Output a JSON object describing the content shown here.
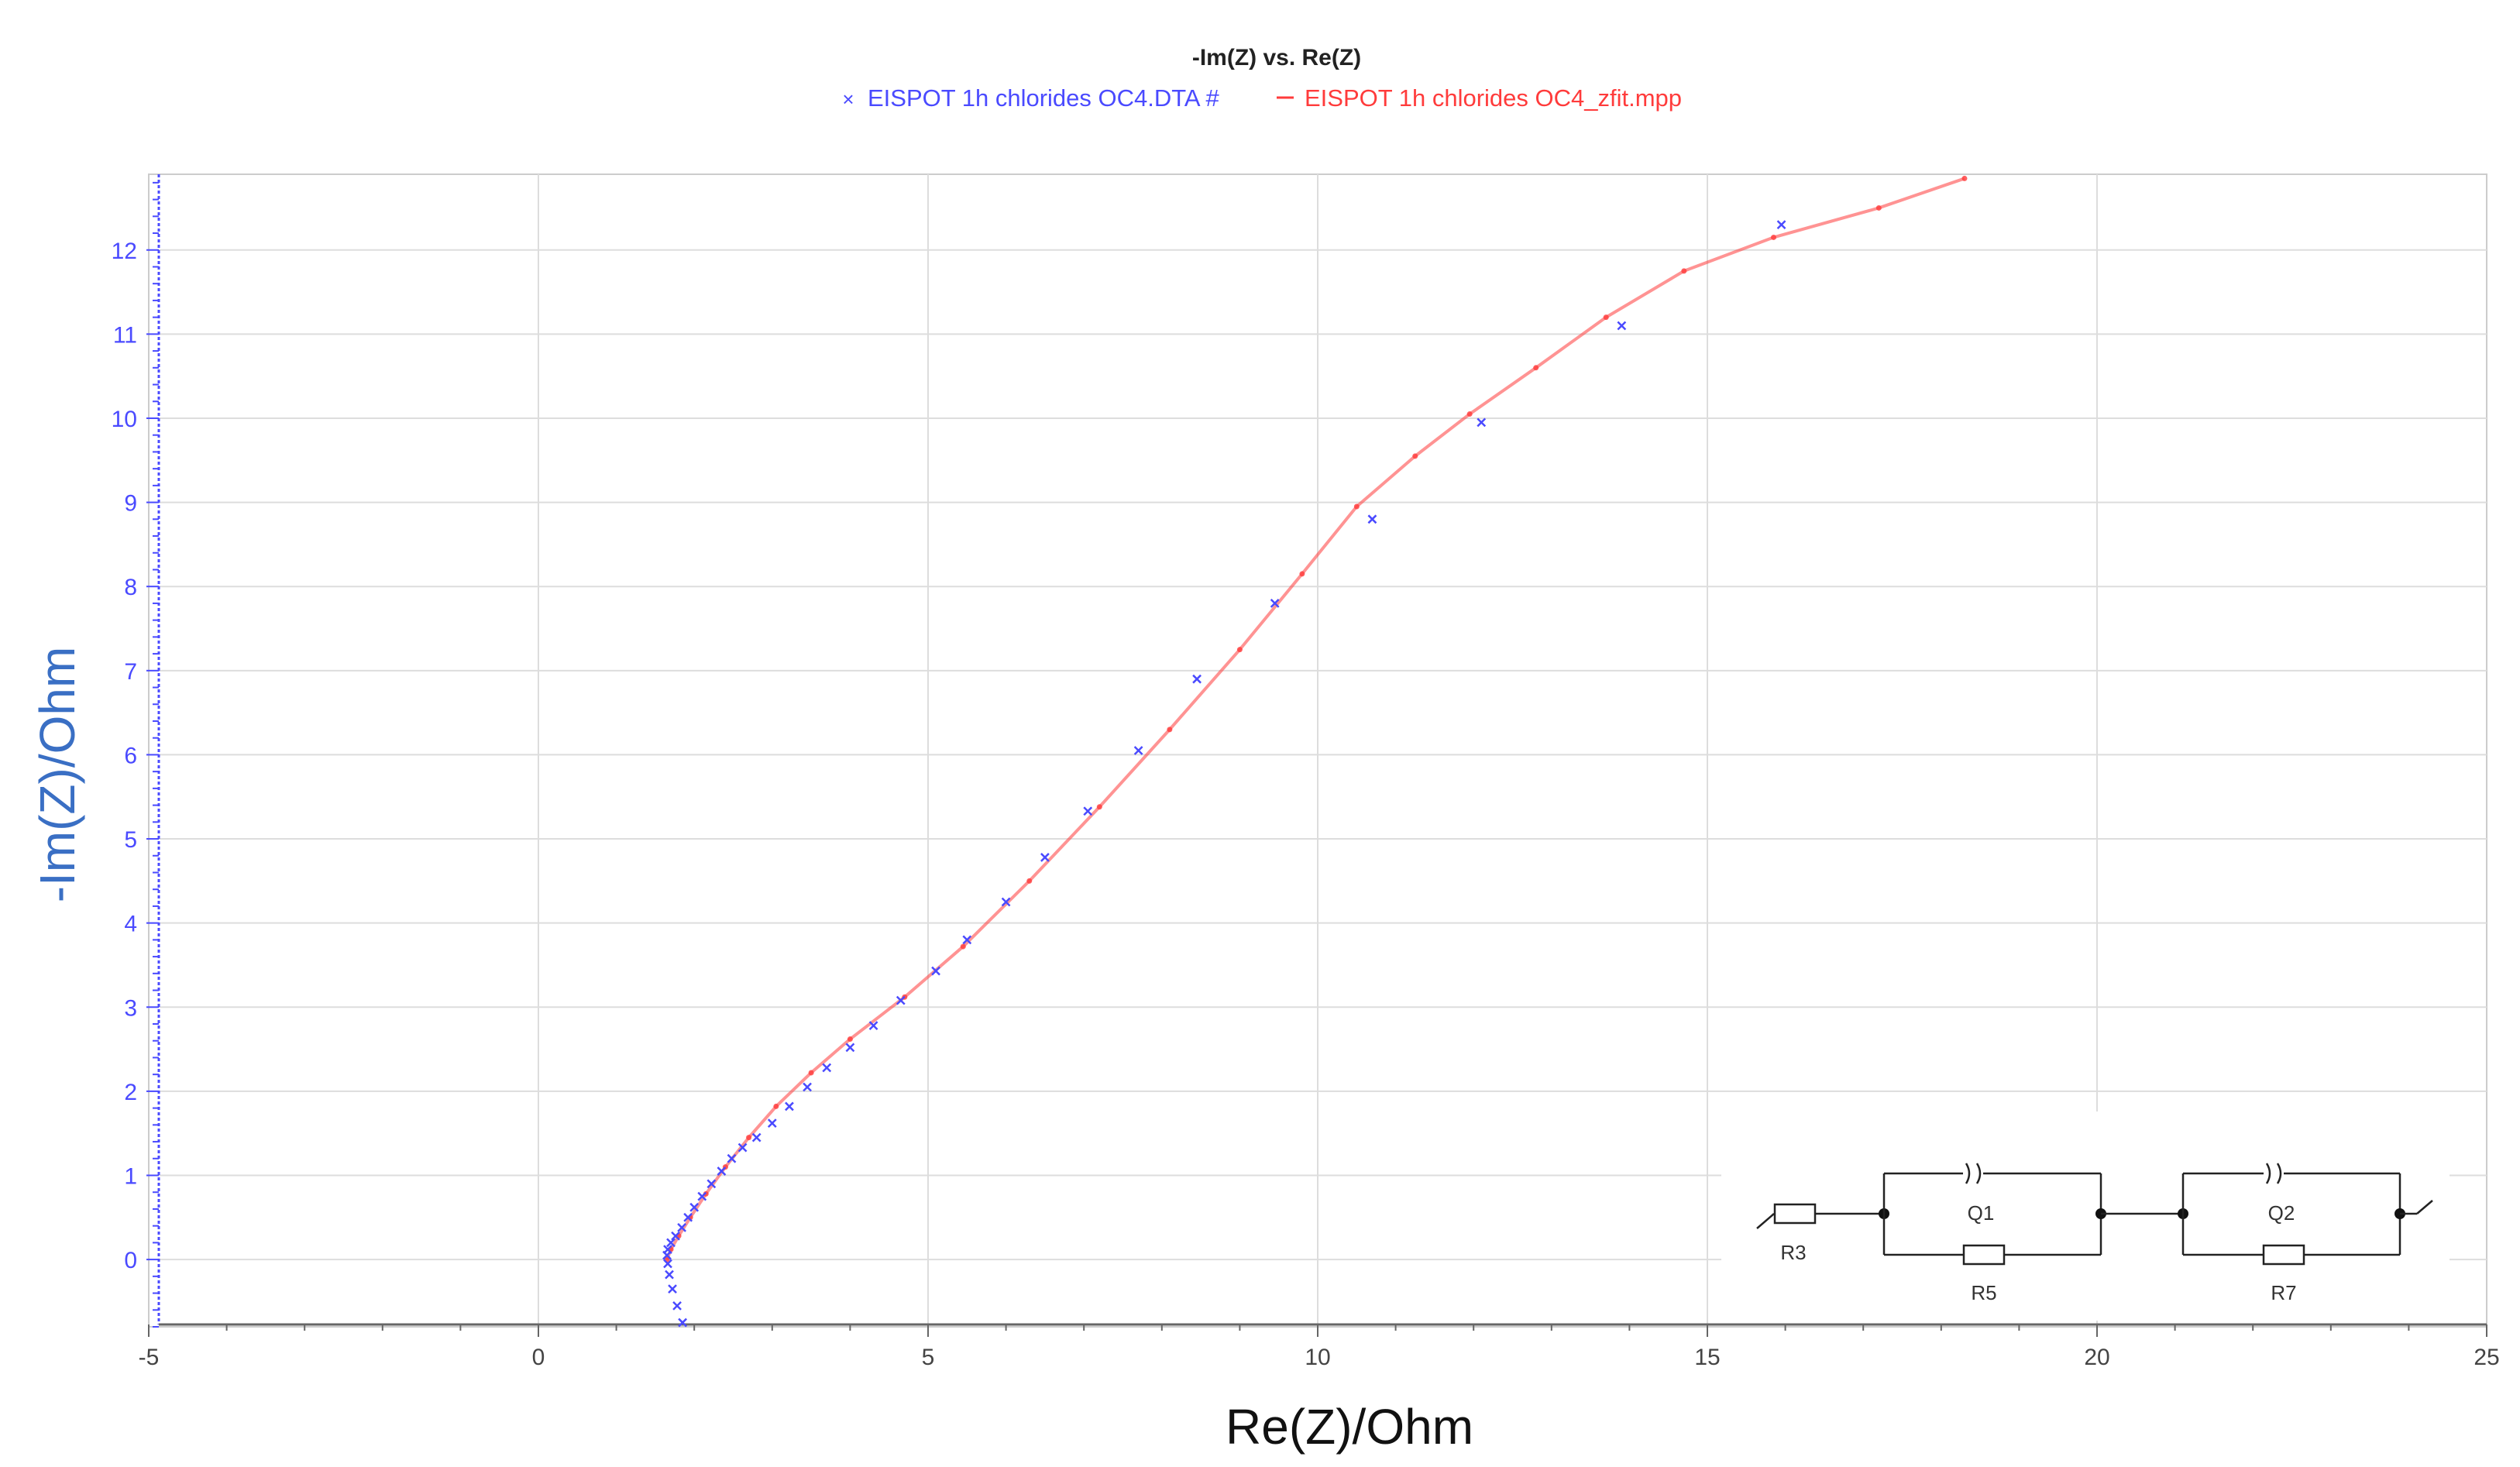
{
  "chart_data": {
    "type": "scatter",
    "title": "-Im(Z) vs. Re(Z)",
    "xlabel": "Re(Z)/Ohm",
    "ylabel": "-Im(Z)/Ohm",
    "xlim": [
      -5,
      25
    ],
    "ylim": [
      -0.8,
      12.9
    ],
    "xticks": [
      -5,
      0,
      5,
      10,
      15,
      20,
      25
    ],
    "yticks": [
      0,
      1,
      2,
      3,
      4,
      5,
      6,
      7,
      8,
      9,
      10,
      11,
      12
    ],
    "grid": true,
    "legend_position": "top-center",
    "series": [
      {
        "name": "EISPOT 1h chlorides OC4.DTA #",
        "kind": "points",
        "color": "#4a4aff",
        "x": [
          1.85,
          1.78,
          1.72,
          1.68,
          1.66,
          1.65,
          1.66,
          1.7,
          1.76,
          1.84,
          1.92,
          2.0,
          2.1,
          2.22,
          2.35,
          2.48,
          2.62,
          2.8,
          3.0,
          3.22,
          3.45,
          3.7,
          4.0,
          4.3,
          4.65,
          5.1,
          5.5,
          6.0,
          6.5,
          7.05,
          7.7,
          8.45,
          9.45,
          10.7,
          12.1,
          13.9,
          15.95
        ],
        "y": [
          -0.75,
          -0.55,
          -0.35,
          -0.18,
          -0.05,
          0.05,
          0.12,
          0.2,
          0.28,
          0.38,
          0.5,
          0.62,
          0.75,
          0.9,
          1.05,
          1.2,
          1.33,
          1.45,
          1.62,
          1.82,
          2.05,
          2.28,
          2.52,
          2.78,
          3.08,
          3.43,
          3.8,
          4.25,
          4.78,
          5.33,
          6.05,
          6.9,
          7.8,
          8.8,
          9.95,
          11.1,
          12.3
        ]
      },
      {
        "name": "EISPOT 1h chlorides OC4_zfit.mpp",
        "kind": "line",
        "color": "#ff3b3b",
        "x": [
          1.65,
          1.7,
          1.8,
          1.95,
          2.15,
          2.4,
          2.7,
          3.05,
          3.5,
          4.0,
          4.7,
          5.45,
          6.3,
          7.2,
          8.1,
          9.0,
          9.8,
          10.5,
          11.25,
          11.95,
          12.8,
          13.7,
          14.7,
          15.85,
          17.2,
          18.3
        ],
        "y": [
          0.0,
          0.12,
          0.28,
          0.5,
          0.78,
          1.1,
          1.45,
          1.82,
          2.22,
          2.62,
          3.12,
          3.72,
          4.5,
          5.38,
          6.3,
          7.25,
          8.15,
          8.95,
          9.55,
          10.05,
          10.6,
          11.2,
          11.75,
          12.15,
          12.5,
          12.85
        ]
      }
    ],
    "annotation": {
      "type": "equivalent-circuit",
      "labels": [
        "R3",
        "Q1",
        "R5",
        "Q2",
        "R7"
      ]
    }
  },
  "colors": {
    "axis": "#4a4aff",
    "grid": "#dddddd",
    "data_series": "#4a4aff",
    "fit_series": "#ff3b3b",
    "ylabel": "#3a6fc4",
    "xlabel": "#111111"
  }
}
